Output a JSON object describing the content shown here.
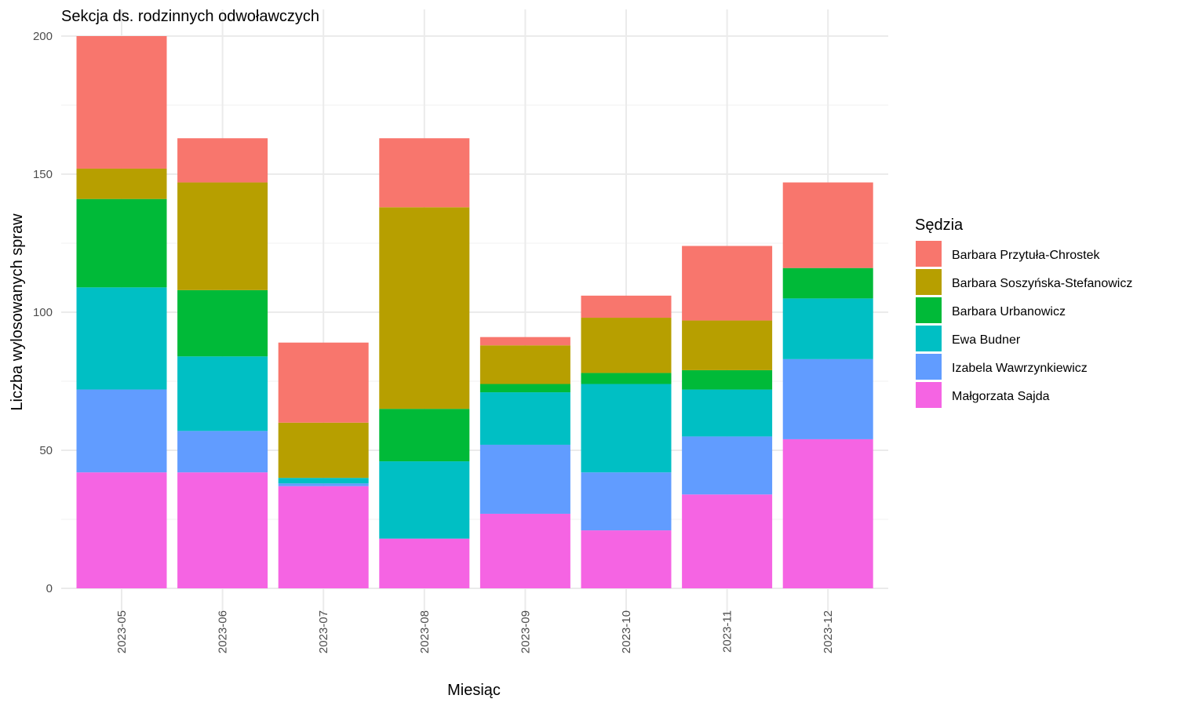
{
  "chart_data": {
    "type": "bar",
    "stacked": true,
    "title": "Sekcja ds. rodzinnych odwoławczych",
    "xlabel": "Miesiąc",
    "ylabel": "Liczba wylosowanych spraw",
    "ylim": [
      0,
      200
    ],
    "yticks": [
      0,
      50,
      100,
      150,
      200
    ],
    "grid": true,
    "legend": {
      "title": "Sędzia",
      "position": "right"
    },
    "categories": [
      "2023-05",
      "2023-06",
      "2023-07",
      "2023-08",
      "2023-09",
      "2023-10",
      "2023-11",
      "2023-12"
    ],
    "series": [
      {
        "name": "Małgorzata Sajda",
        "color": "#F564E3",
        "values": [
          42,
          42,
          37,
          18,
          27,
          21,
          34,
          54
        ]
      },
      {
        "name": "Izabela Wawrzynkiewicz",
        "color": "#619CFF",
        "values": [
          30,
          15,
          1,
          0,
          25,
          21,
          21,
          29
        ]
      },
      {
        "name": "Ewa Budner",
        "color": "#00BFC4",
        "values": [
          37,
          27,
          2,
          28,
          19,
          32,
          17,
          22
        ]
      },
      {
        "name": "Barbara Urbanowicz",
        "color": "#00BA38",
        "values": [
          32,
          24,
          0,
          19,
          3,
          4,
          7,
          11
        ]
      },
      {
        "name": "Barbara Soszyńska-Stefanowicz",
        "color": "#B79F00",
        "values": [
          11,
          39,
          20,
          73,
          14,
          20,
          18,
          0
        ]
      },
      {
        "name": "Barbara Przytuła-Chrostek",
        "color": "#F8766D",
        "values": [
          48,
          16,
          29,
          25,
          3,
          8,
          27,
          31
        ]
      }
    ],
    "legend_order": [
      "Barbara Przytuła-Chrostek",
      "Barbara Soszyńska-Stefanowicz",
      "Barbara Urbanowicz",
      "Ewa Budner",
      "Izabela Wawrzynkiewicz",
      "Małgorzata Sajda"
    ]
  }
}
